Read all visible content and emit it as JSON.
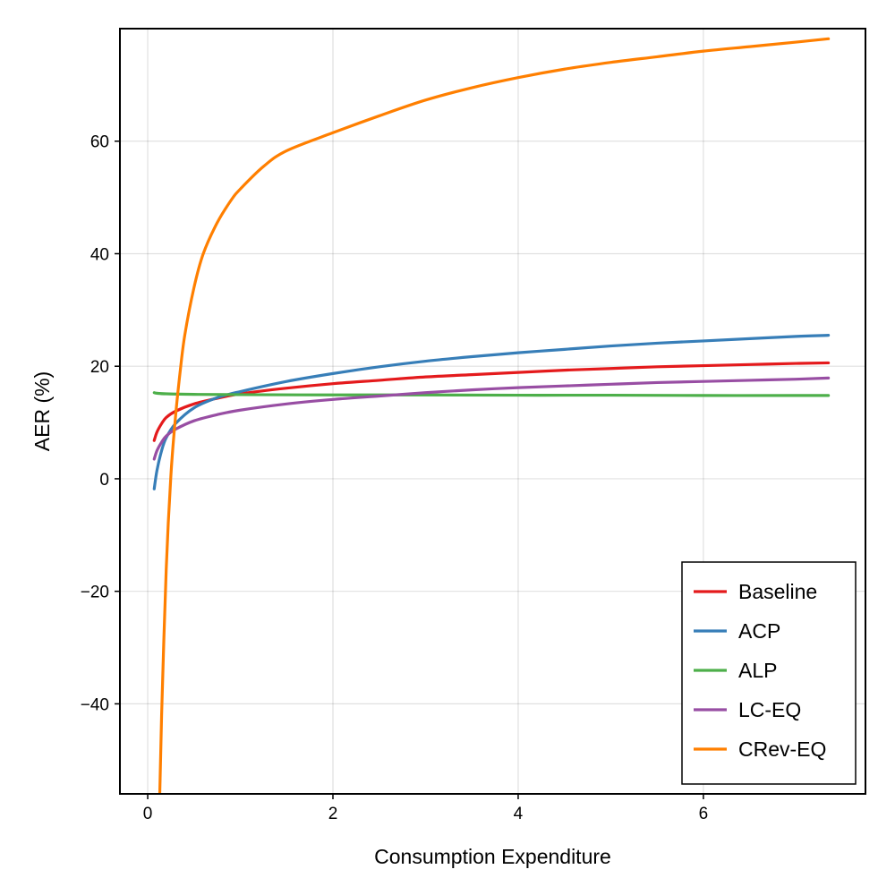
{
  "chart_data": {
    "type": "line",
    "title": "",
    "xlabel": "Consumption Expenditure",
    "ylabel": "AER (%)",
    "xlim": [
      -0.3,
      7.75
    ],
    "ylim": [
      -56,
      80
    ],
    "xticks": [
      0,
      2,
      4,
      6
    ],
    "xtick_labels": [
      "0",
      "2",
      "4",
      "6"
    ],
    "yticks": [
      -40,
      -20,
      0,
      20,
      40,
      60
    ],
    "ytick_labels": [
      "−40",
      "−20",
      "0",
      "20",
      "40",
      "60"
    ],
    "grid": true,
    "legend_position": "bottom-right",
    "series": [
      {
        "name": "Baseline",
        "color": "#e41a1c",
        "x": [
          0.07,
          0.1,
          0.15,
          0.2,
          0.3,
          0.5,
          0.75,
          1.0,
          1.5,
          2.0,
          2.5,
          3.0,
          3.5,
          4.0,
          4.5,
          5.0,
          5.5,
          6.0,
          6.5,
          7.0,
          7.35
        ],
        "y": [
          6.8,
          8.3,
          9.8,
          10.9,
          12.0,
          13.3,
          14.3,
          15.1,
          16.1,
          16.9,
          17.5,
          18.1,
          18.5,
          18.9,
          19.3,
          19.6,
          19.9,
          20.1,
          20.3,
          20.5,
          20.6
        ]
      },
      {
        "name": "ACP",
        "color": "#377eb8",
        "x": [
          0.07,
          0.1,
          0.15,
          0.2,
          0.3,
          0.5,
          0.75,
          1.0,
          1.5,
          2.0,
          2.5,
          3.0,
          3.5,
          4.0,
          4.5,
          5.0,
          5.5,
          6.0,
          6.5,
          7.0,
          7.35
        ],
        "y": [
          -1.8,
          1.5,
          5.0,
          7.3,
          9.8,
          12.6,
          14.4,
          15.5,
          17.3,
          18.7,
          19.9,
          20.9,
          21.7,
          22.4,
          23.0,
          23.6,
          24.1,
          24.5,
          24.9,
          25.3,
          25.5
        ]
      },
      {
        "name": "ALP",
        "color": "#4daf4a",
        "x": [
          0.07,
          0.1,
          0.2,
          0.5,
          1.0,
          2.0,
          3.0,
          4.0,
          5.0,
          6.0,
          7.0,
          7.35
        ],
        "y": [
          15.3,
          15.2,
          15.1,
          15.0,
          14.95,
          14.9,
          14.9,
          14.85,
          14.85,
          14.8,
          14.8,
          14.8
        ]
      },
      {
        "name": "LC-EQ",
        "color": "#984ea3",
        "x": [
          0.07,
          0.1,
          0.15,
          0.2,
          0.3,
          0.5,
          0.75,
          1.0,
          1.5,
          2.0,
          2.5,
          3.0,
          3.5,
          4.0,
          4.5,
          5.0,
          5.5,
          6.0,
          6.5,
          7.0,
          7.35
        ],
        "y": [
          3.5,
          5.0,
          6.5,
          7.6,
          8.8,
          10.3,
          11.4,
          12.2,
          13.3,
          14.1,
          14.7,
          15.3,
          15.8,
          16.2,
          16.5,
          16.8,
          17.1,
          17.3,
          17.5,
          17.7,
          17.9
        ]
      },
      {
        "name": "CRev-EQ",
        "color": "#ff7f00",
        "x": [
          0.13,
          0.15,
          0.2,
          0.25,
          0.3,
          0.35,
          0.4,
          0.5,
          0.6,
          0.75,
          0.9,
          1.0,
          1.25,
          1.5,
          2.0,
          2.5,
          3.0,
          3.5,
          4.0,
          4.5,
          5.0,
          5.5,
          6.0,
          6.5,
          7.0,
          7.35
        ],
        "y": [
          -56,
          -42,
          -16,
          0.5,
          11,
          19,
          25.5,
          34,
          40,
          45.5,
          49.5,
          51.5,
          55.5,
          58.3,
          61.5,
          64.5,
          67.3,
          69.5,
          71.3,
          72.8,
          74.0,
          75.0,
          76.0,
          76.8,
          77.6,
          78.2
        ]
      }
    ]
  }
}
